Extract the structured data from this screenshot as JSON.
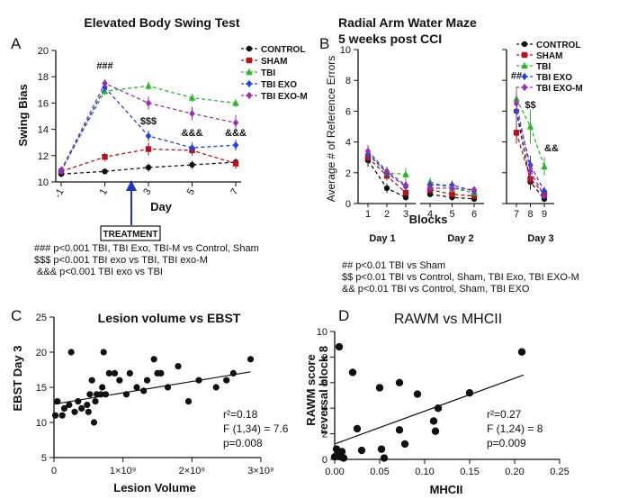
{
  "colors": {
    "control": "#111111",
    "sham": "#b5121b",
    "tbi": "#2bb52b",
    "tbi_exo": "#2340e0",
    "tbi_exo_m": "#9a2fb0",
    "arrow": "#1f33c8",
    "fit": "#111111"
  },
  "chart_data": [
    {
      "id": "A",
      "panel_label": "A",
      "type": "line",
      "title": "Elevated Body Swing Test",
      "xlabel": "Day",
      "ylabel": "Swing Bias",
      "x": [
        -1,
        1,
        3,
        5,
        7
      ],
      "x_ticks": [
        "-1",
        "1",
        "3",
        "5",
        "7"
      ],
      "ylim": [
        10,
        20
      ],
      "y_ticks": [
        10,
        12,
        14,
        16,
        18,
        20
      ],
      "series": [
        {
          "name": "CONTROL",
          "color_key": "control",
          "values": [
            10.6,
            10.8,
            11.1,
            11.3,
            11.5
          ],
          "err": [
            0.2,
            0.2,
            0.3,
            0.3,
            0.3
          ]
        },
        {
          "name": "SHAM",
          "color_key": "sham",
          "values": [
            10.8,
            11.9,
            12.5,
            12.4,
            11.4
          ],
          "err": [
            0.2,
            0.3,
            0.5,
            0.4,
            0.4
          ]
        },
        {
          "name": "TBI",
          "color_key": "tbi",
          "values": [
            10.9,
            16.9,
            17.3,
            16.4,
            16.0
          ],
          "err": [
            0.2,
            0.3,
            0.3,
            0.3,
            0.3
          ]
        },
        {
          "name": "TBI EXO",
          "color_key": "tbi_exo",
          "values": [
            10.8,
            17.2,
            13.5,
            12.6,
            12.8
          ],
          "err": [
            0.2,
            0.3,
            0.4,
            0.4,
            0.4
          ]
        },
        {
          "name": "TBI EXO-M",
          "color_key": "tbi_exo_m",
          "values": [
            10.9,
            17.5,
            16.0,
            15.2,
            14.5
          ],
          "err": [
            0.2,
            0.3,
            0.5,
            0.5,
            0.6
          ]
        }
      ],
      "annotations": [
        {
          "text": "###",
          "x": 1,
          "y": 18.6
        },
        {
          "text": "$$$",
          "x": 3,
          "y": 14.4
        },
        {
          "text": "&&&",
          "x": 5,
          "y": 13.5
        },
        {
          "text": "&&&",
          "x": 7,
          "y": 13.5
        }
      ],
      "treatment_label": "TREATMENT",
      "treatment_day": 2,
      "notes": [
        "### p<0.001 TBI, TBI Exo, TBI-M  vs Control, Sham",
        "$$$ p<0.001   TBI exo vs TBI, TBI exo-M",
        " &&& p<0.001 TBI exo vs TBI"
      ]
    },
    {
      "id": "B",
      "panel_label": "B",
      "type": "line",
      "title": "Radial Arm Water Maze",
      "subtitle": "5 weeks post CCI",
      "xlabel": "Blocks",
      "ylabel": "Average # of Reference Errors",
      "x": [
        1,
        2,
        3,
        4,
        5,
        6,
        7,
        8,
        9
      ],
      "x_ticks": [
        "1",
        "2",
        "3",
        "4",
        "5",
        "6",
        "7",
        "8",
        "9"
      ],
      "day_labels": [
        "Day 1",
        "Day 2",
        "Day 3"
      ],
      "ylim": [
        0,
        10
      ],
      "y_ticks": [
        0,
        2,
        4,
        6,
        8,
        10
      ],
      "series": [
        {
          "name": "CONTROL",
          "color_key": "control",
          "values": [
            2.8,
            1.0,
            0.4,
            0.6,
            0.4,
            0.3,
            6.0,
            1.4,
            0.3
          ],
          "err": [
            0.4,
            0.3,
            0.2,
            0.2,
            0.2,
            0.1,
            0.9,
            0.5,
            0.2
          ]
        },
        {
          "name": "SHAM",
          "color_key": "sham",
          "values": [
            3.0,
            1.8,
            0.7,
            0.9,
            0.6,
            0.5,
            4.6,
            1.6,
            0.6
          ],
          "err": [
            0.4,
            0.3,
            0.2,
            0.3,
            0.2,
            0.2,
            0.7,
            0.5,
            0.2
          ]
        },
        {
          "name": "TBI",
          "color_key": "tbi",
          "values": [
            3.3,
            2.0,
            1.9,
            1.4,
            1.0,
            0.7,
            6.8,
            5.0,
            2.4
          ],
          "err": [
            0.4,
            0.3,
            0.4,
            0.3,
            0.3,
            0.2,
            0.8,
            1.1,
            0.6
          ]
        },
        {
          "name": "TBI EXO",
          "color_key": "tbi_exo",
          "values": [
            3.2,
            2.0,
            1.1,
            1.2,
            1.2,
            0.8,
            6.0,
            2.5,
            0.8
          ],
          "err": [
            0.4,
            0.3,
            0.3,
            0.3,
            0.3,
            0.2,
            0.8,
            0.6,
            0.3
          ]
        },
        {
          "name": "TBI EXO-M",
          "color_key": "tbi_exo_m",
          "values": [
            3.4,
            2.1,
            1.2,
            1.0,
            1.0,
            0.9,
            6.5,
            2.1,
            0.5
          ],
          "err": [
            0.4,
            0.3,
            0.3,
            0.3,
            0.3,
            0.2,
            0.8,
            0.6,
            0.2
          ]
        }
      ],
      "annotations": [
        {
          "text": "##",
          "x": 7,
          "y": 8.1
        },
        {
          "text": "$$",
          "x": 8,
          "y": 6.2
        },
        {
          "text": "&&",
          "x": 9,
          "y": 3.4
        }
      ],
      "notes": [
        "## p<0.01 TBI vs Sham",
        "$$ p<0.01 TBI vs Control, Sham, TBI Exo, TBI EXO-M",
        "&& p<0.01 TBI vs Control, Sham, TBI EXO"
      ]
    },
    {
      "id": "C",
      "panel_label": "C",
      "type": "scatter",
      "title": "Lesion volume vs EBST",
      "xlabel": "Lesion Volume",
      "ylabel": "EBST Day 3",
      "xlim": [
        0,
        3000000000
      ],
      "ylim": [
        5,
        25
      ],
      "x_ticks": [
        {
          "v": 0,
          "label": "0"
        },
        {
          "v": 1000000000,
          "label": "1×10⁹"
        },
        {
          "v": 2000000000,
          "label": "2×10⁹"
        },
        {
          "v": 3000000000,
          "label": "3×10⁹"
        }
      ],
      "y_ticks": [
        5,
        10,
        15,
        20,
        25
      ],
      "points": [
        [
          0.02,
          11
        ],
        [
          0.05,
          13
        ],
        [
          0.12,
          11
        ],
        [
          0.15,
          12
        ],
        [
          0.22,
          12.5
        ],
        [
          0.25,
          20
        ],
        [
          0.3,
          11.5
        ],
        [
          0.35,
          13
        ],
        [
          0.4,
          12
        ],
        [
          0.48,
          12.5
        ],
        [
          0.5,
          11.5
        ],
        [
          0.52,
          14
        ],
        [
          0.55,
          16
        ],
        [
          0.58,
          10
        ],
        [
          0.6,
          13
        ],
        [
          0.62,
          14
        ],
        [
          0.68,
          14
        ],
        [
          0.7,
          15
        ],
        [
          0.72,
          20
        ],
        [
          0.75,
          14
        ],
        [
          0.8,
          17
        ],
        [
          0.88,
          17
        ],
        [
          0.95,
          16
        ],
        [
          1.05,
          14
        ],
        [
          1.1,
          17
        ],
        [
          1.2,
          15
        ],
        [
          1.3,
          14.5
        ],
        [
          1.35,
          16
        ],
        [
          1.45,
          19
        ],
        [
          1.5,
          17
        ],
        [
          1.55,
          17
        ],
        [
          1.65,
          15
        ],
        [
          1.8,
          18
        ],
        [
          1.95,
          13
        ],
        [
          2.1,
          16
        ],
        [
          2.35,
          15
        ],
        [
          2.5,
          16
        ],
        [
          2.6,
          17
        ],
        [
          2.85,
          19
        ]
      ],
      "fit": {
        "x": [
          0,
          2.85
        ],
        "y": [
          12.6,
          17.2
        ]
      },
      "stats": [
        "r²=0.18",
        "F (1,34) = 7.6",
        "p=0.008"
      ]
    },
    {
      "id": "D",
      "panel_label": "D",
      "type": "scatter",
      "title": "RAWM vs MHCII",
      "xlabel": "MHCII",
      "ylabel": "RAWM score reversal block 8",
      "ylabel_lines": [
        "RAWM score",
        "reversal block 8"
      ],
      "xlim": [
        0,
        0.25
      ],
      "ylim": [
        0,
        10
      ],
      "x_ticks": [
        {
          "v": 0,
          "label": "0.00"
        },
        {
          "v": 0.05,
          "label": "0.05"
        },
        {
          "v": 0.1,
          "label": "0.10"
        },
        {
          "v": 0.15,
          "label": "0.15"
        },
        {
          "v": 0.2,
          "label": "0.20"
        },
        {
          "v": 0.25,
          "label": "0.25"
        }
      ],
      "y_ticks": [
        0,
        2,
        4,
        6,
        8,
        10
      ],
      "points": [
        [
          0.0,
          0.2
        ],
        [
          0.002,
          0.8
        ],
        [
          0.004,
          0.5
        ],
        [
          0.006,
          0.2
        ],
        [
          0.008,
          0.6
        ],
        [
          0.01,
          0.1
        ],
        [
          0.005,
          8.8
        ],
        [
          0.02,
          6.8
        ],
        [
          0.025,
          2.4
        ],
        [
          0.03,
          0.7
        ],
        [
          0.05,
          5.6
        ],
        [
          0.052,
          0.8
        ],
        [
          0.055,
          0.1
        ],
        [
          0.072,
          6.0
        ],
        [
          0.072,
          2.3
        ],
        [
          0.078,
          1.2
        ],
        [
          0.092,
          5.1
        ],
        [
          0.11,
          3.0
        ],
        [
          0.112,
          2.2
        ],
        [
          0.115,
          4.0
        ],
        [
          0.15,
          5.2
        ],
        [
          0.208,
          8.4
        ]
      ],
      "fit": {
        "x": [
          0,
          0.21
        ],
        "y": [
          1.2,
          6.6
        ]
      },
      "stats": [
        "r²=0.27",
        "F (1,24) = 8",
        "p=0.009"
      ]
    }
  ]
}
